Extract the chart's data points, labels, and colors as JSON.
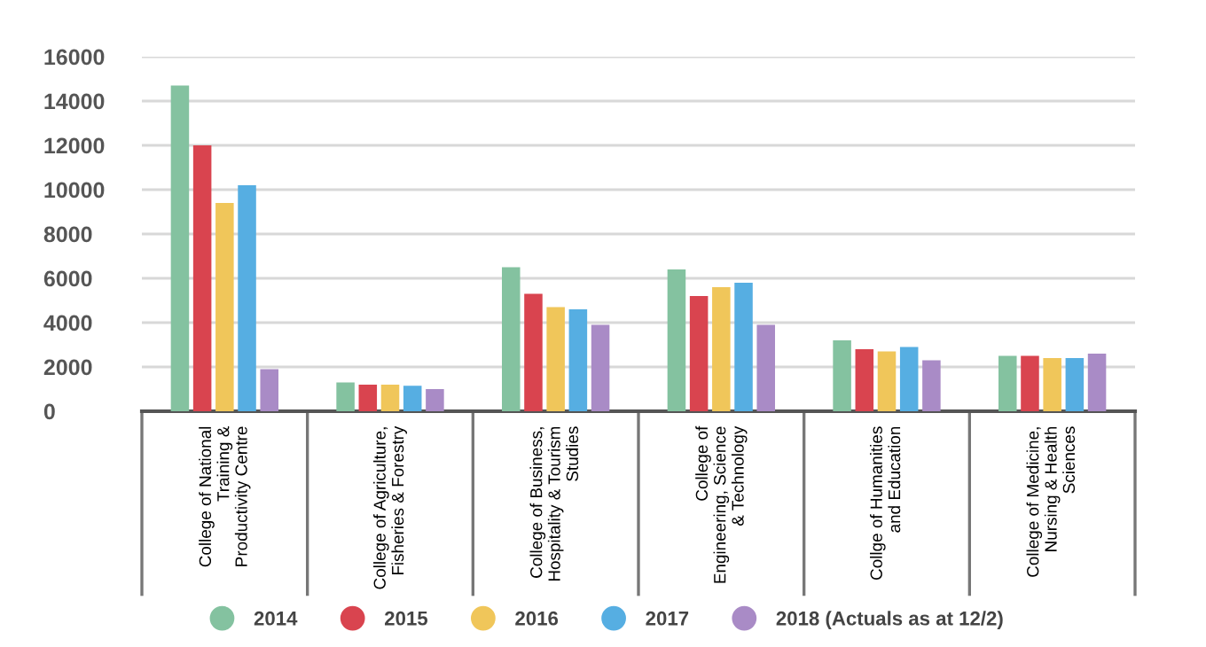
{
  "chart_data": {
    "type": "bar",
    "categories": [
      "College of National\nTraining &\nProductivity Centre",
      "College of Agriculture,\nFisheries & Forestry",
      "College of Business,\nHospitality & Tourism\nStudies",
      "College of\nEngineering, Science\n& Technology",
      "Collge of Humanities\nand Education",
      "College of Medicine,\nNursing & Health\nSciences"
    ],
    "series": [
      {
        "name": "2014",
        "color": "#84c2a0",
        "values": [
          14700,
          1300,
          6500,
          6400,
          3200,
          2500
        ]
      },
      {
        "name": "2015",
        "color": "#d9444f",
        "values": [
          12000,
          1200,
          5300,
          5200,
          2800,
          2500
        ]
      },
      {
        "name": "2016",
        "color": "#f0c65a",
        "values": [
          9400,
          1200,
          4700,
          5600,
          2700,
          2400
        ]
      },
      {
        "name": "2017",
        "color": "#56aee2",
        "values": [
          10200,
          1150,
          4600,
          5800,
          2900,
          2400
        ]
      },
      {
        "name": "2018 (Actuals as at 12/2)",
        "color": "#a98bc6",
        "values": [
          1900,
          1000,
          3900,
          3900,
          2300,
          2600
        ]
      }
    ],
    "ylim": [
      0,
      16000
    ],
    "yticks": [
      0,
      2000,
      4000,
      6000,
      8000,
      10000,
      12000,
      14000,
      16000
    ],
    "grid": "y",
    "legend": "bottom",
    "marker": "circle"
  }
}
